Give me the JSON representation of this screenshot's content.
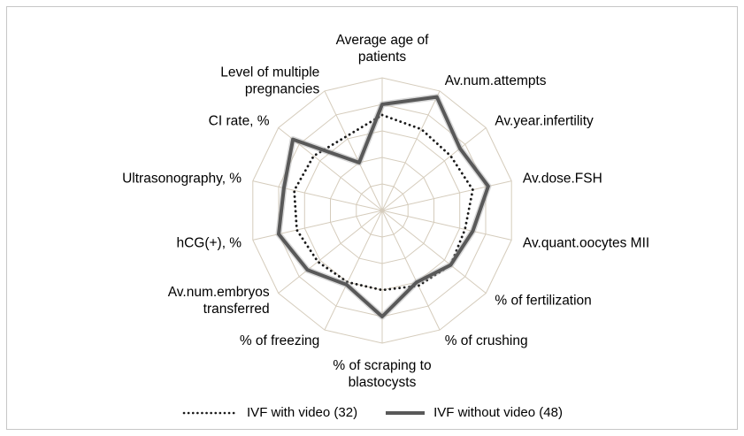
{
  "chart_data": {
    "type": "radar",
    "title": "",
    "rings": 5,
    "max": 100,
    "grid_color": "#d5ccbc",
    "background_color": "#ffffff",
    "categories": [
      "Average age of\npatients",
      "Av.num.attempts",
      "Av.year.infertility",
      "Av.dose.FSH",
      "Av.quant.oocytes MII",
      "% of fertilization",
      "% of crushing",
      "% of scraping to\nblastocysts",
      "% of freezing",
      "Av.num.embryos\ntransferred",
      "hCG(+), %",
      "Ultrasonography, %",
      "CI rate, %",
      "Level of multiple\npregnancies"
    ],
    "series": [
      {
        "name": "IVF with video (32)",
        "style": "dotted",
        "color": "#1a1a1a",
        "values": [
          72,
          68,
          66,
          70,
          64,
          66,
          63,
          60,
          60,
          62,
          66,
          68,
          66,
          62
        ]
      },
      {
        "name": "IVF without video (48)",
        "style": "solid",
        "color": "#595959",
        "values": [
          80,
          95,
          75,
          82,
          70,
          66,
          60,
          80,
          62,
          72,
          80,
          76,
          86,
          40
        ]
      }
    ],
    "legend_position": "bottom"
  },
  "legend": {
    "items": [
      {
        "label": "IVF with video (32)"
      },
      {
        "label": "IVF without video (48)"
      }
    ]
  }
}
